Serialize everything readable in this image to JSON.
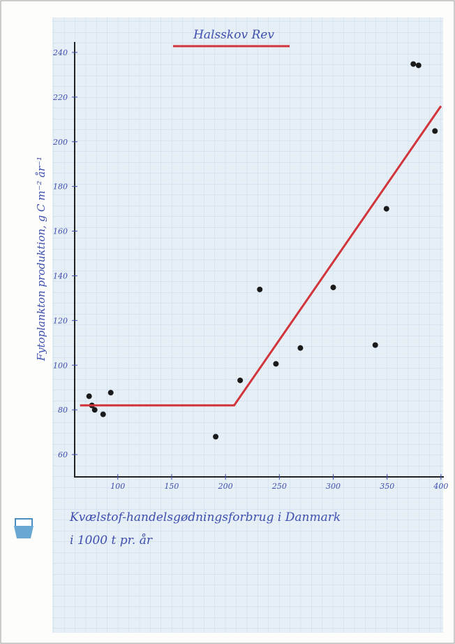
{
  "chart_data": {
    "type": "scatter",
    "title": "Halsskov Rev",
    "y_label": "Fytoplankton produktion, g C m⁻² år⁻¹",
    "x_label": [
      "Kvælstof-handelsgødningsforbrug i Danmark",
      "i 1000 t pr. år"
    ],
    "xlim": [
      60,
      402
    ],
    "xticks": [
      100,
      150,
      200,
      250,
      300,
      350,
      400
    ],
    "ylim": [
      50,
      250
    ],
    "yticks": [
      60,
      80,
      100,
      120,
      140,
      160,
      180,
      200,
      220,
      240
    ],
    "series": [
      {
        "style": "points",
        "color": "#1a1a1a",
        "x": [
          73.4,
          76,
          78.6,
          86.4,
          93.5,
          190.9,
          213.6,
          231.8,
          246.8,
          269.5,
          300,
          339,
          349.4,
          374.3,
          379.2,
          394.4
        ],
        "values": [
          86.1,
          82,
          80,
          78,
          87.7,
          68,
          93.2,
          133.9,
          100.6,
          107.7,
          134.8,
          109,
          170,
          234.8,
          234.2,
          204.8
        ]
      },
      {
        "style": "line",
        "color": "#d2343b",
        "x": [
          65,
          208,
          400
        ],
        "values": [
          82,
          82,
          216
        ]
      }
    ]
  }
}
